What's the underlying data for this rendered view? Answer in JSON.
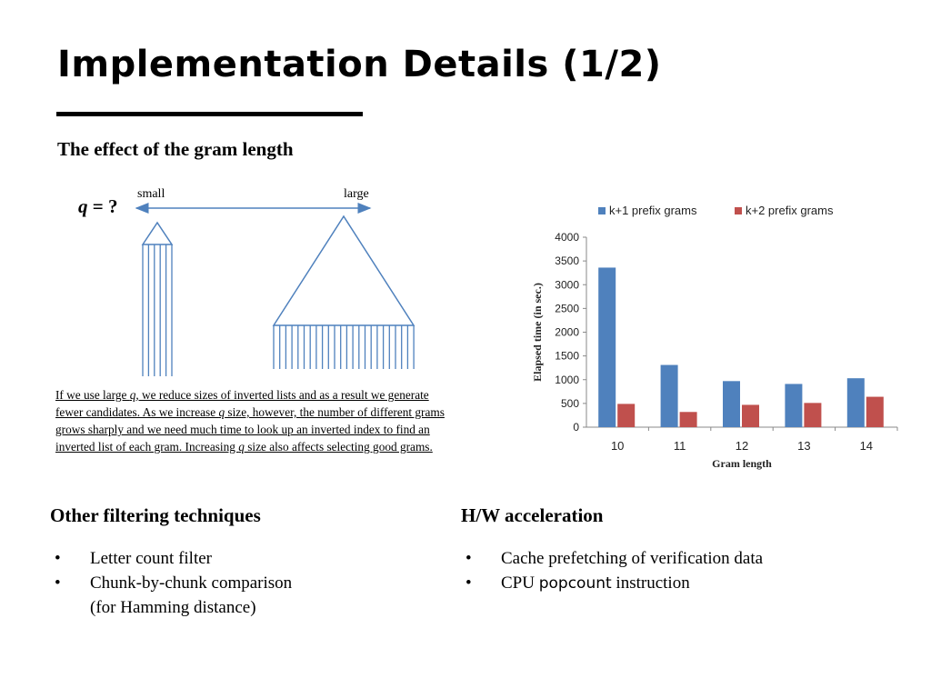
{
  "slide": {
    "title": "Implementation Details (1/2)",
    "subtitle": "The effect of the gram length",
    "diagram": {
      "q_prefix": "q",
      "q_suffix": " = ?",
      "small_label": "small",
      "large_label": "large"
    },
    "paragraph": {
      "p1": "If we use large ",
      "p1q": "q",
      "p2": ", we reduce sizes of inverted lists and as a result we generate",
      "p3": "fewer candidates. As we increase ",
      "p3q": "q",
      "p4": " size, however, the number of different grams",
      "p5": "grows sharply and we need much time to look up an inverted index to find an",
      "p6": "inverted list of each gram. Increasing ",
      "p6q": "q",
      "p7": " size also affects selecting good grams."
    },
    "left_section": {
      "heading": "Other filtering techniques",
      "bullet_char": "•",
      "items": [
        "Letter count filter",
        "Chunk-by-chunk comparison",
        "(for Hamming distance)"
      ]
    },
    "right_section": {
      "heading": "H/W acceleration",
      "bullet_char": "•",
      "item1": "Cache prefetching of verification data",
      "item2_a": "CPU ",
      "item2_b": "popcount",
      "item2_c": " instruction"
    }
  },
  "chart_data": {
    "type": "bar",
    "categories": [
      "10",
      "11",
      "12",
      "13",
      "14"
    ],
    "series": [
      {
        "name": "k+1 prefix grams",
        "color": "#4f81bd",
        "values": [
          3360,
          1310,
          970,
          910,
          1030
        ]
      },
      {
        "name": "k+2 prefix grams",
        "color": "#c0504d",
        "values": [
          490,
          320,
          470,
          510,
          640
        ]
      }
    ],
    "xlabel": "Gram length",
    "ylabel": "Elapsed time (in sec.)",
    "ylim": [
      0,
      4000
    ],
    "yticks": [
      "0",
      "500",
      "1000",
      "1500",
      "2000",
      "2500",
      "3000",
      "3500",
      "4000"
    ],
    "legend_position": "top",
    "grid": false
  }
}
